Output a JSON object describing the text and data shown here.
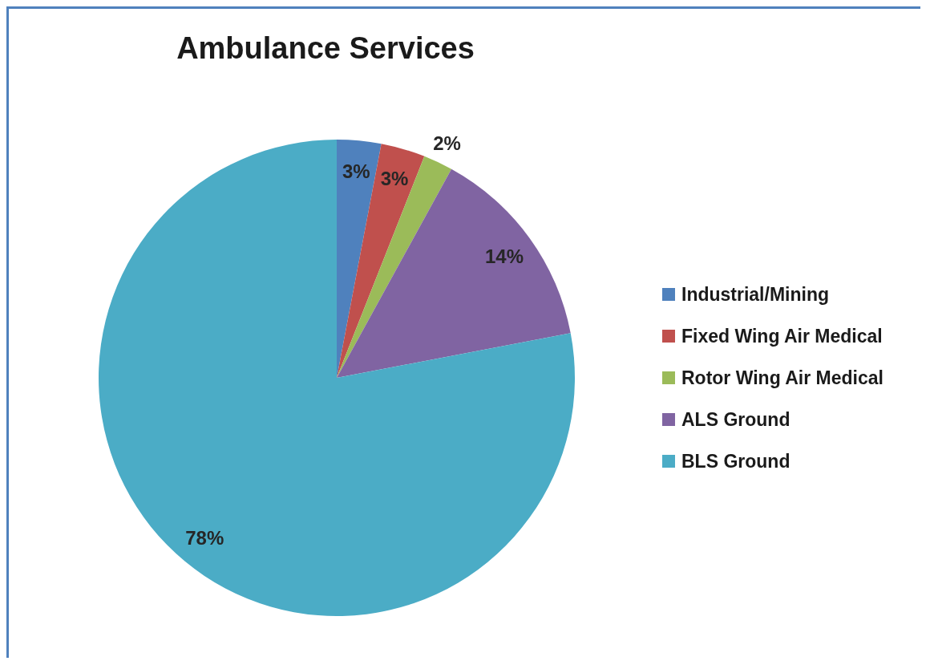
{
  "chart_data": {
    "type": "pie",
    "title": "Ambulance Services",
    "categories": [
      "Industrial/Mining",
      "Fixed Wing Air Medical",
      "Rotor Wing Air Medical",
      "ALS Ground",
      "BLS Ground"
    ],
    "values": [
      3,
      3,
      2,
      14,
      78
    ],
    "colors": [
      "#4f81bd",
      "#c0504d",
      "#9bbb59",
      "#8064a2",
      "#4bacc6"
    ],
    "value_labels": [
      "3%",
      "3%",
      "2%",
      "14%",
      "78%"
    ],
    "legend": "right"
  }
}
